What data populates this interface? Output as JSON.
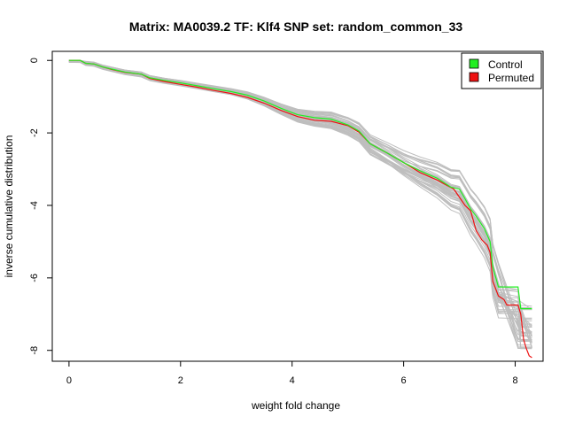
{
  "chart_data": {
    "type": "line",
    "title": "Matrix: MA0039.2 TF: Klf4 SNP set: random_common_33",
    "xlabel": "weight fold change",
    "ylabel": "inverse cumulative distribution",
    "xlim": [
      -0.3,
      8.5
    ],
    "ylim": [
      -8.3,
      0.25
    ],
    "xticks": [
      0,
      2,
      4,
      6,
      8
    ],
    "yticks": [
      0,
      -2,
      -4,
      -6,
      -8
    ],
    "grid": false,
    "legend": {
      "position": "top-right",
      "entries": [
        {
          "label": "Control",
          "color": "#22ee22"
        },
        {
          "label": "Permuted",
          "color": "#ee1111"
        }
      ]
    },
    "colors": {
      "control": "#22ee22",
      "permuted": "#ee1111",
      "random": "#bebebe",
      "frame": "#000000"
    },
    "series": [
      {
        "name": "Control",
        "color": "#22ee22",
        "x": [
          0.0,
          0.2,
          0.3,
          0.45,
          0.6,
          0.8,
          1.0,
          1.3,
          1.45,
          1.7,
          2.0,
          2.3,
          2.6,
          2.9,
          3.2,
          3.5,
          3.8,
          4.1,
          4.4,
          4.7,
          5.0,
          5.2,
          5.4,
          5.7,
          6.0,
          6.3,
          6.6,
          6.85,
          7.0,
          7.1,
          7.2,
          7.3,
          7.45,
          7.55,
          7.6,
          7.7,
          8.05,
          8.1,
          8.3
        ],
        "y": [
          0.0,
          0.0,
          -0.08,
          -0.1,
          -0.18,
          -0.25,
          -0.32,
          -0.38,
          -0.48,
          -0.55,
          -0.62,
          -0.7,
          -0.78,
          -0.86,
          -0.96,
          -1.12,
          -1.32,
          -1.5,
          -1.58,
          -1.62,
          -1.78,
          -1.95,
          -2.3,
          -2.55,
          -2.82,
          -3.05,
          -3.25,
          -3.5,
          -3.55,
          -3.82,
          -4.1,
          -4.3,
          -4.65,
          -5.0,
          -5.7,
          -6.25,
          -6.25,
          -6.85,
          -6.85
        ]
      },
      {
        "name": "Permuted",
        "color": "#ee1111",
        "x": [
          0.0,
          0.2,
          0.3,
          0.45,
          0.6,
          0.8,
          1.0,
          1.3,
          1.45,
          1.7,
          2.0,
          2.3,
          2.6,
          2.9,
          3.2,
          3.5,
          3.8,
          4.1,
          4.4,
          4.7,
          5.0,
          5.2,
          5.4,
          5.7,
          6.0,
          6.3,
          6.6,
          6.9,
          7.1,
          7.2,
          7.3,
          7.4,
          7.5,
          7.55,
          7.6,
          7.7,
          7.8,
          7.85,
          8.05,
          8.1,
          8.15,
          8.2,
          8.25,
          8.3
        ],
        "y": [
          0.0,
          0.0,
          -0.08,
          -0.1,
          -0.18,
          -0.26,
          -0.33,
          -0.38,
          -0.5,
          -0.58,
          -0.66,
          -0.74,
          -0.83,
          -0.91,
          -1.02,
          -1.18,
          -1.38,
          -1.55,
          -1.65,
          -1.68,
          -1.8,
          -1.98,
          -2.3,
          -2.55,
          -2.82,
          -3.1,
          -3.3,
          -3.55,
          -4.0,
          -4.15,
          -4.7,
          -4.95,
          -5.1,
          -5.3,
          -6.1,
          -6.5,
          -6.6,
          -6.75,
          -6.75,
          -7.0,
          -7.7,
          -7.95,
          -8.15,
          -8.2
        ]
      }
    ],
    "background_series_count": 40
  }
}
